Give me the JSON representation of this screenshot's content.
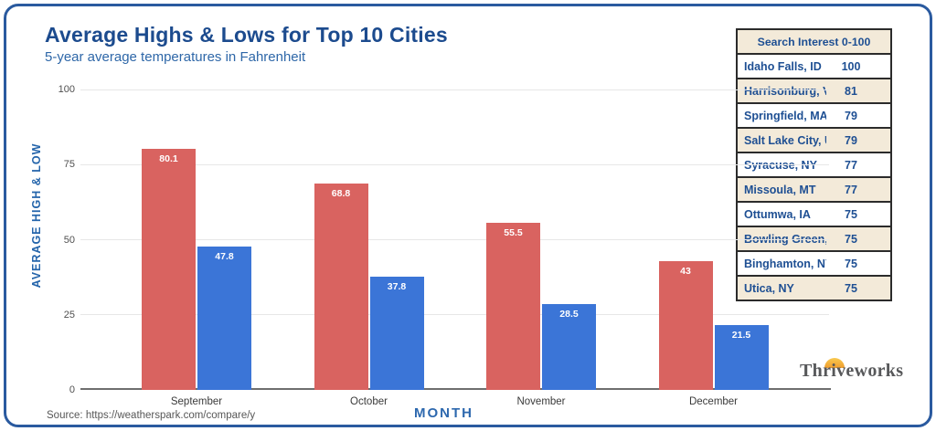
{
  "header": {
    "title": "Average Highs & Lows for Top 10 Cities",
    "subtitle": "5-year average temperatures in Fahrenheit"
  },
  "chart_data": {
    "type": "bar",
    "categories": [
      "September",
      "October",
      "November",
      "December"
    ],
    "series": [
      {
        "name": "Average High",
        "color": "#d96360",
        "values": [
          80.1,
          68.8,
          55.5,
          43
        ],
        "labels": [
          "80.1",
          "68.8",
          "55.5",
          "43"
        ]
      },
      {
        "name": "Average Low",
        "color": "#3b75d7",
        "values": [
          47.8,
          37.8,
          28.5,
          21.5
        ],
        "labels": [
          "47.8",
          "37.8",
          "28.5",
          "21.5"
        ]
      }
    ],
    "xlabel": "MONTH",
    "ylabel": "AVERAGE HIGH & LOW",
    "ylim": [
      0,
      100
    ],
    "yticks": [
      0,
      25,
      50,
      75,
      100
    ],
    "grid": true,
    "legend": "none"
  },
  "table": {
    "header": "Search Interest 0-100",
    "rows": [
      {
        "city": "Idaho Falls, ID",
        "value": "100"
      },
      {
        "city": "Harrisonburg, VA",
        "value": "81"
      },
      {
        "city": "Springfield, MA",
        "value": "79"
      },
      {
        "city": "Salt Lake City, UT",
        "value": "79"
      },
      {
        "city": "Syracuse, NY",
        "value": "77"
      },
      {
        "city": "Missoula, MT",
        "value": "77"
      },
      {
        "city": "Ottumwa, IA",
        "value": "75"
      },
      {
        "city": "Bowling Green, KY",
        "value": "75"
      },
      {
        "city": "Binghamton, NY",
        "value": "75"
      },
      {
        "city": "Utica, NY",
        "value": "75"
      }
    ]
  },
  "source": "Source: https://weatherspark.com/compare/y",
  "branding": {
    "logo_text": "Thriveworks"
  },
  "colors": {
    "accent_blue": "#2d68ae",
    "title_navy": "#1c4b8e",
    "bar_red": "#d96360",
    "bar_blue": "#3b75d7",
    "table_cream": "#f3ead9",
    "canvas_border": "#2a5a9f"
  }
}
